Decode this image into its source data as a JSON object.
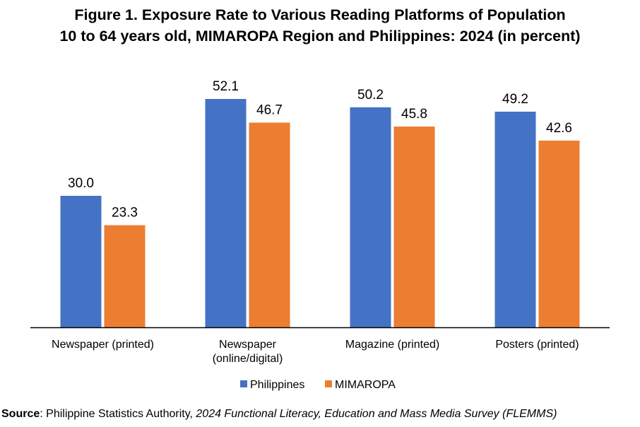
{
  "title": {
    "line1": "Figure 1. Exposure Rate to Various Reading Platforms of Population",
    "line2": "10 to 64 years old, MIMAROPA Region and Philippines: 2024 (in percent)"
  },
  "source": {
    "label": "Source",
    "sep": ": ",
    "agency": "Philippine Statistics Authority, ",
    "publication": "2024 Functional Literacy, Education and Mass Media Survey (FLEMMS)"
  },
  "chart_data": {
    "type": "bar",
    "categories": [
      [
        "Newspaper (printed)"
      ],
      [
        "Newspaper",
        "(online/digital)"
      ],
      [
        "Magazine (printed)"
      ],
      [
        "Posters (printed)"
      ]
    ],
    "series": [
      {
        "name": "Philippines",
        "color": "#4472C4",
        "values": [
          30.0,
          52.1,
          50.2,
          49.2
        ]
      },
      {
        "name": "MIMAROPA",
        "color": "#ED7D31",
        "values": [
          23.3,
          46.7,
          45.8,
          42.6
        ]
      }
    ],
    "ylim": [
      0,
      60
    ],
    "grid": false,
    "legend": "bottom",
    "data_labels": true
  }
}
